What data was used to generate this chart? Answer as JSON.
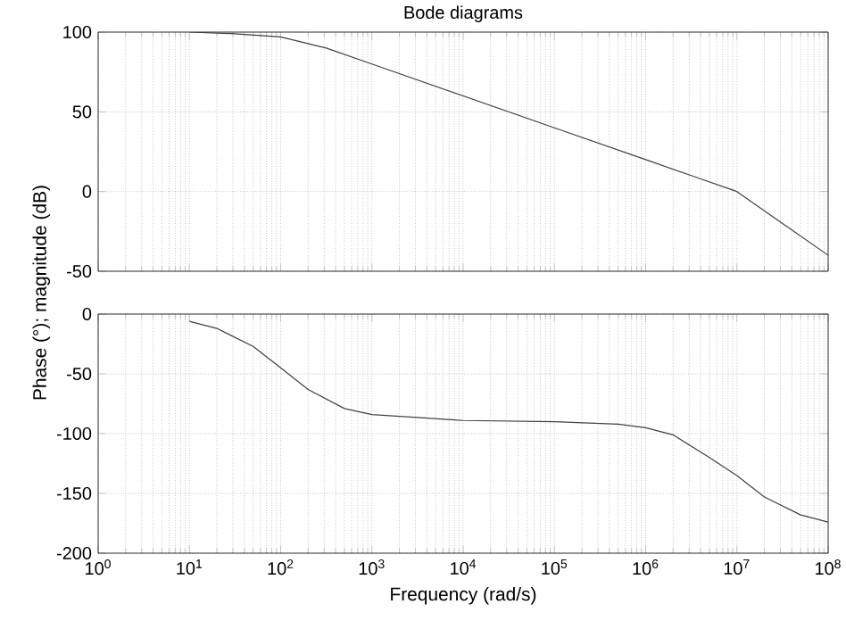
{
  "chart_data": [
    {
      "type": "line",
      "title": "Bode diagrams",
      "ylabel": "Phase (°); magnitude (dB)",
      "log": "x",
      "grid": true,
      "marker": "none",
      "line_style": "solid",
      "tick_labels": "y",
      "xlim": [
        1,
        100000000
      ],
      "xticks": [
        1,
        10,
        100,
        1000,
        10000,
        100000,
        1000000,
        10000000,
        100000000
      ],
      "ylim": [
        -50,
        100
      ],
      "yticks": [
        -50,
        0,
        50,
        100
      ],
      "series": [
        {
          "color": "#404040",
          "x": [
            10,
            31.6,
            100,
            316,
            1000,
            10000,
            100000,
            1000000,
            3160000,
            10000000,
            31600000,
            100000000
          ],
          "values": [
            100,
            99,
            97,
            90,
            80,
            60,
            40,
            20,
            10,
            0,
            -20,
            -40
          ]
        }
      ]
    },
    {
      "type": "line",
      "xlabel": "Frequency (rad/s)",
      "log": "x",
      "grid": true,
      "marker": "none",
      "line_style": "solid",
      "xlim": [
        1,
        100000000
      ],
      "xticks": [
        {
          "value": 1,
          "label": "10$^{0}$"
        },
        {
          "value": 10,
          "label": "10$^{1}$"
        },
        {
          "value": 100,
          "label": "10$^{2}$"
        },
        {
          "value": 1000,
          "label": "10$^{3}$"
        },
        {
          "value": 10000,
          "label": "10$^{4}$"
        },
        {
          "value": 100000,
          "label": "10$^{5}$"
        },
        {
          "value": 1000000,
          "label": "10$^{6}$"
        },
        {
          "value": 10000000,
          "label": "10$^{7}$"
        },
        {
          "value": 100000000,
          "label": "10$^{8}$"
        }
      ],
      "ylim": [
        -200,
        0
      ],
      "yticks": [
        -200,
        -150,
        -100,
        -50,
        0
      ],
      "series": [
        {
          "color": "#404040",
          "x": [
            10,
            20,
            50,
            100,
            200,
            500,
            1000,
            10000,
            100000,
            500000,
            1000000,
            2000000,
            5000000,
            10000000,
            20000000,
            50000000,
            100000000
          ],
          "values": [
            -6,
            -12,
            -27,
            -45,
            -63,
            -79,
            -84,
            -89,
            -90,
            -92,
            -95,
            -101,
            -120,
            -135,
            -153,
            -168,
            -174
          ]
        }
      ]
    }
  ]
}
